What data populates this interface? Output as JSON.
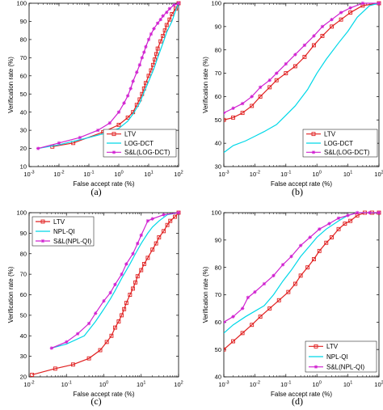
{
  "colors": {
    "ltv": "#e02020",
    "cyan": "#00d8e8",
    "magenta": "#d020d0"
  },
  "chart_data": [
    {
      "type": "line",
      "panel_label": "(a)",
      "xlabel": "False accept rate (%)",
      "ylabel": "Verification rate (%)",
      "xscale": "log",
      "xlim": [
        0.001,
        100
      ],
      "ylim": [
        10,
        100
      ],
      "yticks": [
        10,
        20,
        30,
        40,
        50,
        60,
        70,
        80,
        90,
        100
      ],
      "xtick_exponents": [
        -3,
        -2,
        -1,
        0,
        1,
        2
      ],
      "legend_position": "bottom-right",
      "series": [
        {
          "name": "LTV",
          "key": "ltv",
          "marker": "square",
          "x": [
            0.006,
            0.03,
            0.3,
            1,
            2,
            3,
            4,
            5,
            6,
            7,
            8,
            10,
            12,
            14,
            16,
            18,
            20,
            25,
            30,
            35,
            40,
            50,
            60,
            80,
            100
          ],
          "y": [
            21,
            23,
            29,
            33,
            37,
            40,
            44,
            47,
            50,
            53,
            56,
            60,
            63,
            66,
            69,
            72,
            75,
            79,
            82,
            85,
            88,
            91,
            94,
            97,
            100
          ]
        },
        {
          "name": "LOG-DCT",
          "key": "cyan",
          "marker": "none",
          "x": [
            0.002,
            0.01,
            0.1,
            0.5,
            1,
            2,
            3,
            5,
            7,
            10,
            15,
            20,
            30,
            40,
            60,
            80,
            100
          ],
          "y": [
            20,
            22,
            26,
            29,
            31,
            35,
            39,
            45,
            51,
            57,
            64,
            70,
            78,
            84,
            90,
            96,
            100
          ]
        },
        {
          "name": "S&L(LOG-DCT)",
          "key": "magenta",
          "marker": "star",
          "x": [
            0.002,
            0.01,
            0.05,
            0.2,
            0.5,
            1,
            1.5,
            2,
            2.5,
            3,
            4,
            5,
            6,
            7,
            8,
            10,
            12,
            15,
            20,
            25,
            30,
            40,
            50,
            70,
            100
          ],
          "y": [
            20,
            23,
            26,
            30,
            34,
            40,
            45,
            49,
            53,
            57,
            62,
            66,
            70,
            73,
            76,
            80,
            83,
            86,
            89,
            91,
            93,
            95,
            97,
            99,
            100
          ]
        }
      ]
    },
    {
      "type": "line",
      "panel_label": "(b)",
      "xlabel": "False accept rate (%)",
      "ylabel": "Verification rate (%)",
      "xscale": "log",
      "xlim": [
        0.001,
        100
      ],
      "ylim": [
        30,
        100
      ],
      "yticks": [
        30,
        40,
        50,
        60,
        70,
        80,
        90,
        100
      ],
      "xtick_exponents": [
        -3,
        -2,
        -1,
        0,
        1,
        2
      ],
      "legend_position": "bottom-right",
      "series": [
        {
          "name": "LTV",
          "key": "ltv",
          "marker": "square",
          "x": [
            0.001,
            0.002,
            0.004,
            0.008,
            0.015,
            0.03,
            0.05,
            0.1,
            0.2,
            0.4,
            0.8,
            1.5,
            3,
            6,
            12,
            30,
            100
          ],
          "y": [
            50,
            51,
            53,
            56,
            60,
            64,
            67,
            70,
            73,
            77,
            82,
            86,
            90,
            93,
            96,
            99,
            100
          ]
        },
        {
          "name": "LOG-DCT",
          "key": "cyan",
          "marker": "none",
          "x": [
            0.001,
            0.002,
            0.005,
            0.01,
            0.02,
            0.05,
            0.1,
            0.2,
            0.5,
            1,
            2,
            5,
            10,
            20,
            50,
            100
          ],
          "y": [
            36,
            39,
            41,
            43,
            45,
            48,
            52,
            56,
            63,
            70,
            76,
            83,
            88,
            94,
            99,
            100
          ]
        },
        {
          "name": "S&L(LOG-DCT)",
          "key": "magenta",
          "marker": "star",
          "x": [
            0.001,
            0.002,
            0.004,
            0.008,
            0.015,
            0.03,
            0.05,
            0.1,
            0.2,
            0.4,
            0.8,
            1.5,
            3,
            6,
            12,
            30,
            100
          ],
          "y": [
            53,
            55,
            57,
            60,
            64,
            67,
            70,
            74,
            78,
            82,
            86,
            90,
            93,
            96,
            98,
            100,
            100
          ]
        }
      ]
    },
    {
      "type": "line",
      "panel_label": "(c)",
      "xlabel": "False accept rate (%)",
      "ylabel": "Verification rate (%)",
      "xscale": "log",
      "xlim": [
        0.01,
        100
      ],
      "ylim": [
        20,
        100
      ],
      "yticks": [
        20,
        30,
        40,
        50,
        60,
        70,
        80,
        90,
        100
      ],
      "xtick_exponents": [
        -2,
        -1,
        0,
        1,
        2
      ],
      "legend_position": "top-left",
      "series": [
        {
          "name": "LTV",
          "key": "ltv",
          "marker": "square",
          "x": [
            0.012,
            0.05,
            0.15,
            0.4,
            0.8,
            1.2,
            1.6,
            2,
            2.5,
            3,
            3.5,
            4,
            5,
            6,
            7,
            8,
            10,
            12,
            15,
            20,
            25,
            30,
            40,
            50,
            60,
            80,
            100
          ],
          "y": [
            21,
            24,
            26,
            29,
            33,
            37,
            40,
            44,
            47,
            50,
            53,
            56,
            60,
            63,
            66,
            69,
            72,
            75,
            78,
            82,
            85,
            88,
            91,
            94,
            96,
            98,
            100
          ]
        },
        {
          "name": "NPL-QI",
          "key": "cyan",
          "marker": "none",
          "x": [
            0.04,
            0.1,
            0.3,
            0.6,
            1,
            1.5,
            2,
            3,
            5,
            7,
            10,
            15,
            20,
            30,
            50,
            100
          ],
          "y": [
            34,
            36,
            40,
            47,
            53,
            58,
            62,
            68,
            75,
            80,
            85,
            90,
            93,
            96,
            99,
            100
          ]
        },
        {
          "name": "S&L(NPL-QI)",
          "key": "magenta",
          "marker": "star",
          "x": [
            0.04,
            0.1,
            0.2,
            0.4,
            0.6,
            1,
            1.5,
            2,
            3,
            4,
            6,
            8,
            10,
            15,
            20,
            40,
            100
          ],
          "y": [
            34,
            37,
            41,
            46,
            51,
            57,
            61,
            65,
            70,
            75,
            80,
            85,
            89,
            96,
            97,
            99,
            100
          ]
        }
      ]
    },
    {
      "type": "line",
      "panel_label": "(d)",
      "xlabel": "False accept rate (%)",
      "ylabel": "Verification rate (%)",
      "xscale": "log",
      "xlim": [
        0.001,
        100
      ],
      "ylim": [
        40,
        100
      ],
      "yticks": [
        40,
        50,
        60,
        70,
        80,
        90,
        100
      ],
      "xtick_exponents": [
        -3,
        -2,
        -1,
        0,
        1,
        2
      ],
      "legend_position": "bottom-right",
      "series": [
        {
          "name": "LTV",
          "key": "ltv",
          "marker": "square",
          "x": [
            0.001,
            0.002,
            0.004,
            0.008,
            0.015,
            0.03,
            0.06,
            0.12,
            0.2,
            0.3,
            0.5,
            0.8,
            1.2,
            2,
            3,
            5,
            8,
            12,
            20,
            35,
            60,
            100
          ],
          "y": [
            50,
            53,
            56,
            59,
            62,
            65,
            68,
            71,
            74,
            77,
            80,
            83,
            86,
            89,
            91,
            94,
            96,
            97,
            99,
            100,
            100,
            100
          ]
        },
        {
          "name": "NPL-QI",
          "key": "cyan",
          "marker": "none",
          "x": [
            0.001,
            0.002,
            0.005,
            0.01,
            0.02,
            0.04,
            0.08,
            0.15,
            0.3,
            0.6,
            1,
            2,
            5,
            10,
            20,
            50,
            100
          ],
          "y": [
            56,
            59,
            62,
            64,
            66,
            70,
            75,
            79,
            84,
            88,
            91,
            94,
            97,
            99,
            100,
            100,
            100
          ]
        },
        {
          "name": "S&L(NPL-QI)",
          "key": "magenta",
          "marker": "star",
          "x": [
            0.001,
            0.002,
            0.004,
            0.006,
            0.01,
            0.02,
            0.04,
            0.08,
            0.15,
            0.3,
            0.6,
            1.2,
            2.5,
            5,
            10,
            20,
            50,
            100
          ],
          "y": [
            60,
            62,
            65,
            69,
            71,
            74,
            77,
            81,
            84,
            88,
            91,
            94,
            96,
            98,
            99,
            100,
            100,
            100
          ]
        }
      ]
    }
  ]
}
